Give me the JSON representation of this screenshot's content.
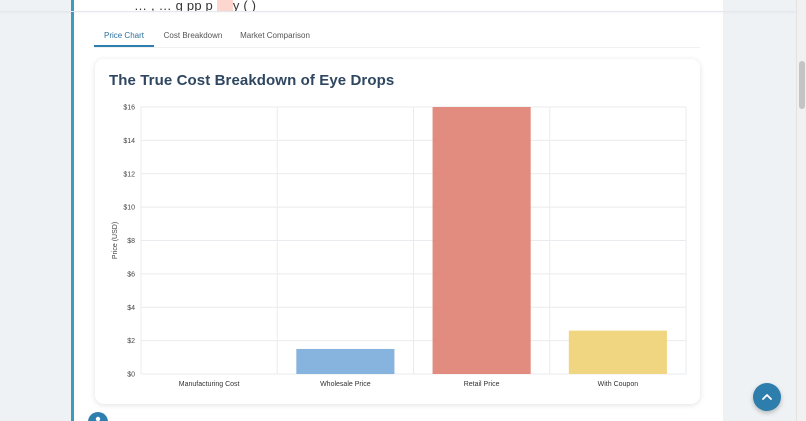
{
  "article": {
    "cutoff_text_pre": "… , …        g         pp      p",
    "cutoff_text_hl": "      ",
    "cutoff_text_post": "y                (    )"
  },
  "tabs": [
    {
      "label": "Price Chart",
      "active": true
    },
    {
      "label": "Cost Breakdown",
      "active": false
    },
    {
      "label": "Market Comparison",
      "active": false
    }
  ],
  "chart_data": {
    "type": "bar",
    "title": "The True Cost Breakdown of Eye Drops",
    "xlabel": "",
    "ylabel": "Price (USD)",
    "categories": [
      "Manufacturing Cost",
      "Wholesale Price",
      "Retail Price",
      "With Coupon"
    ],
    "values": [
      0,
      1.5,
      16,
      2.6
    ],
    "colors": [
      "#7fb0dd",
      "#7fb0dd",
      "#e08578",
      "#f0d47a"
    ],
    "ylim": [
      0,
      16
    ],
    "yticks": [
      "$0",
      "$2",
      "$4",
      "$6",
      "$8",
      "$10",
      "$12",
      "$14",
      "$16"
    ],
    "grid": true,
    "legend": "none"
  },
  "colors": {
    "accent": "#2d7dad",
    "title": "#2e4660",
    "sidebar_border": "#3d9bbf"
  },
  "icons": {
    "scroll_top": "chevron-up-icon",
    "author": "person-icon"
  }
}
